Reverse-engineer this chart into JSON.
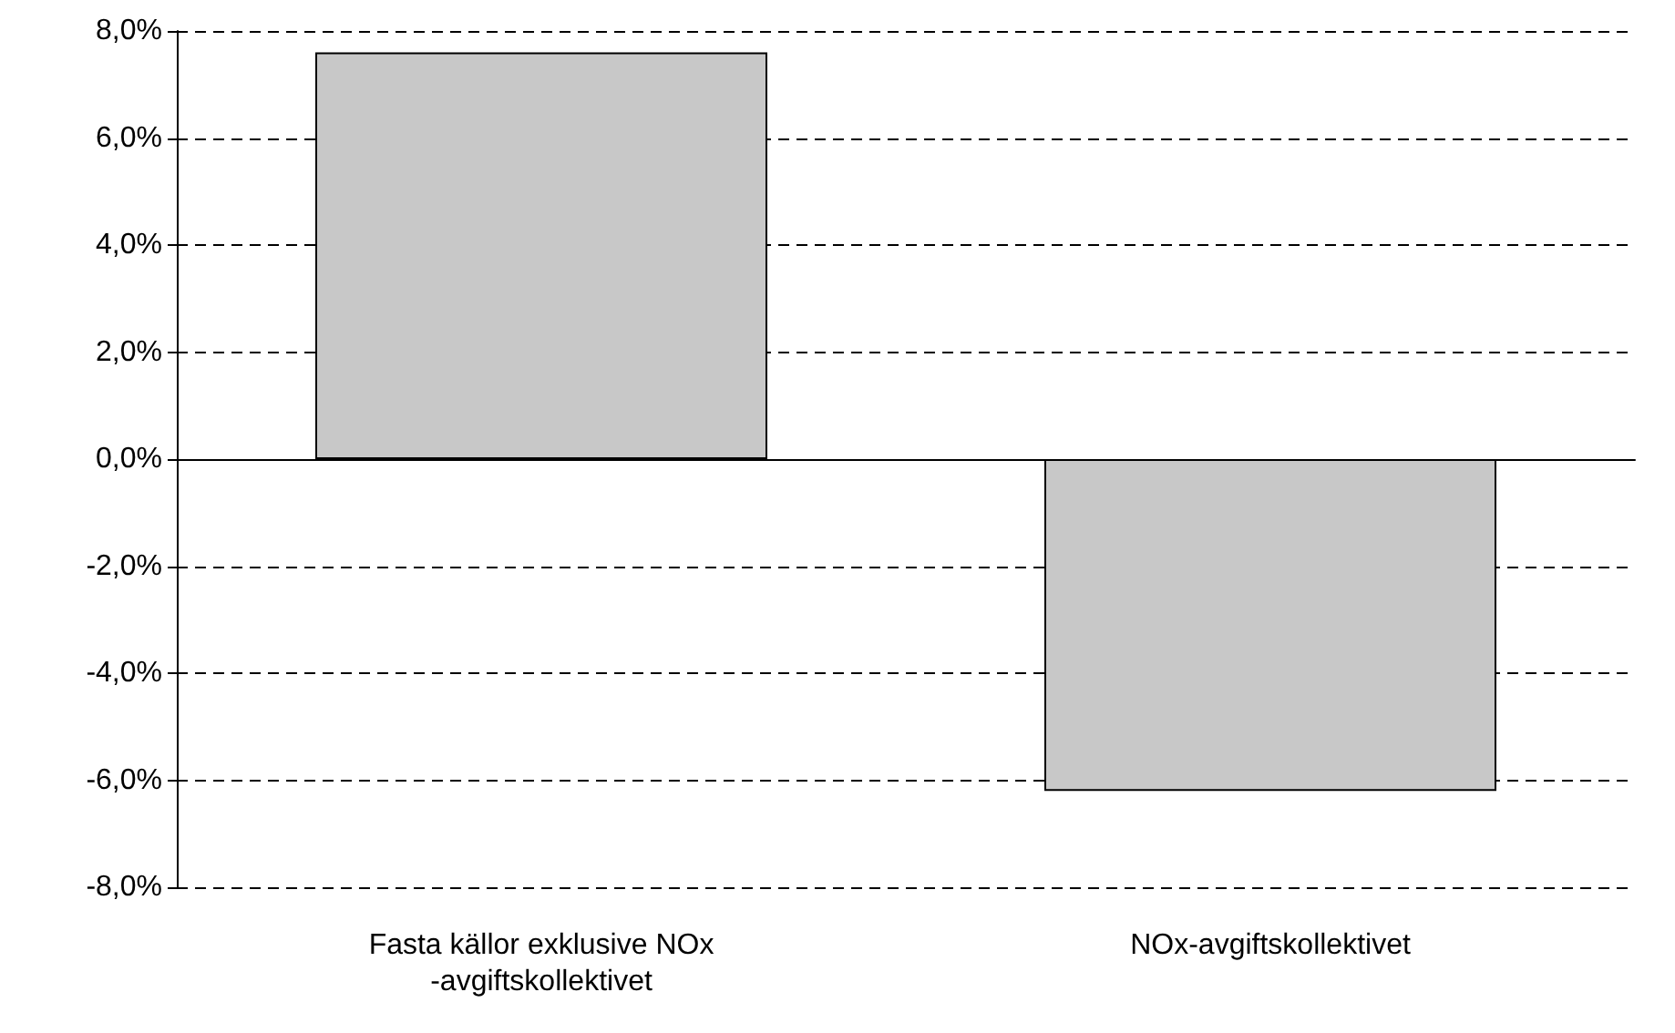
{
  "chart_data": {
    "type": "bar",
    "categories": [
      "Fasta källor exklusive NOx-avgiftskollektivet",
      "NOx-avgiftskollektivet"
    ],
    "values": [
      7.6,
      -6.2
    ],
    "color": "#c8c8c8",
    "ylim": [
      -8,
      8
    ],
    "yticks": [
      {
        "value": -8,
        "label": "-8,0%"
      },
      {
        "value": -6,
        "label": "-6,0%"
      },
      {
        "value": -4,
        "label": "-4,0%"
      },
      {
        "value": -2,
        "label": "-2,0%"
      },
      {
        "value": 0,
        "label": "0,0%"
      },
      {
        "value": 2,
        "label": "2,0%"
      },
      {
        "value": 4,
        "label": "4,0%"
      },
      {
        "value": 6,
        "label": "6,0%"
      },
      {
        "value": 8,
        "label": "8,0%"
      }
    ],
    "grid": "y"
  }
}
